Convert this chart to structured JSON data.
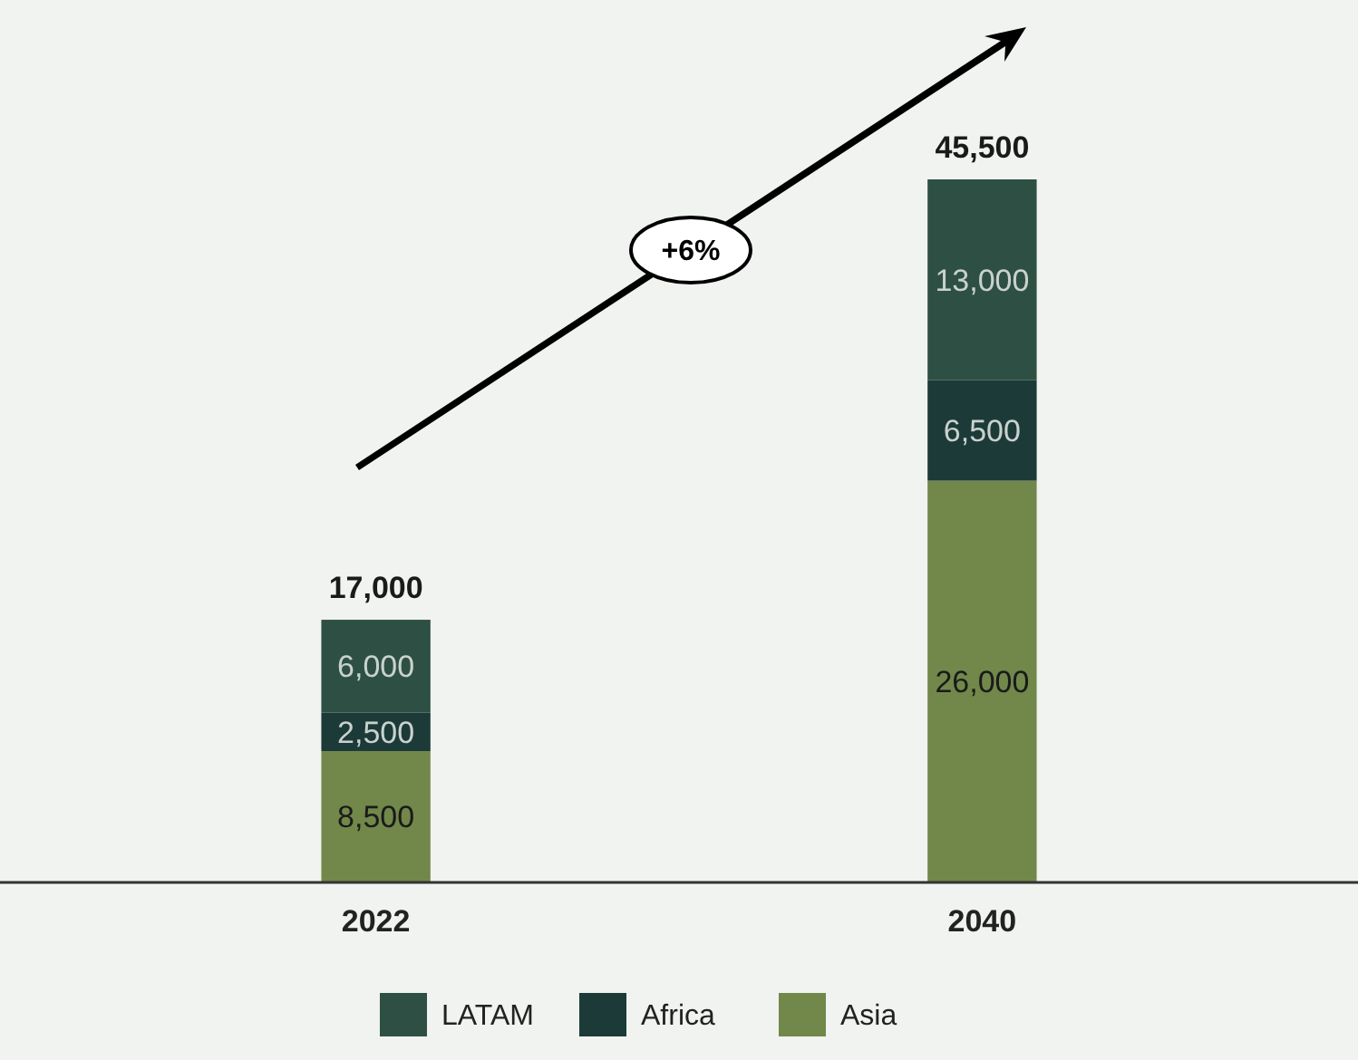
{
  "chart_data": {
    "type": "bar",
    "stacked": true,
    "categories": [
      "2022",
      "2040"
    ],
    "series": [
      {
        "name": "Asia",
        "color": "#71884a",
        "values": [
          8500,
          26000
        ],
        "value_labels": [
          "8,500",
          "26,000"
        ]
      },
      {
        "name": "Africa",
        "color": "#1c3a38",
        "values": [
          2500,
          6500
        ],
        "value_labels": [
          "2,500",
          "6,500"
        ]
      },
      {
        "name": "LATAM",
        "color": "#2e5044",
        "values": [
          6000,
          13000
        ],
        "value_labels": [
          "6,000",
          "13,000"
        ]
      }
    ],
    "totals": [
      "17,000",
      "45,500"
    ],
    "annotations": [
      "+6%"
    ],
    "legend": "bottom"
  }
}
